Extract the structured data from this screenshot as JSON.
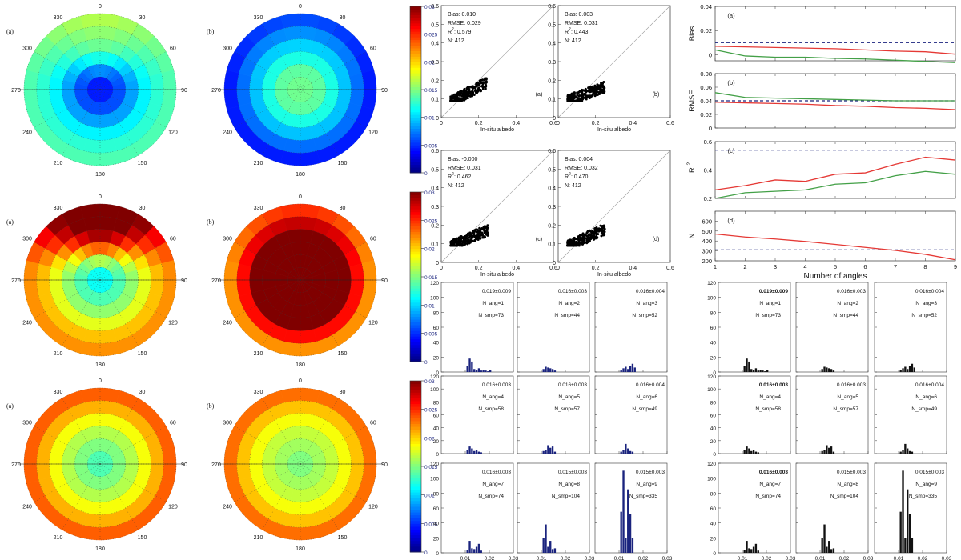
{
  "polar_figure": {
    "panel_letters": [
      "(a)",
      "(b)"
    ],
    "angle_labels": [
      "0",
      "30",
      "60",
      "90",
      "120",
      "150",
      "180",
      "210",
      "240",
      "270",
      "300",
      "330"
    ],
    "colorbar_ticks": [
      "0",
      "0.005",
      "0.01",
      "0.015",
      "0.02",
      "0.025",
      "0.03"
    ],
    "colorbar_range": [
      0,
      0.03
    ],
    "rows": [
      {
        "a": {
          "rings": [
            0.0045,
            0.006,
            0.0085,
            0.011,
            0.0125,
            0.0135
          ],
          "north_boost": [
            0,
            0.002,
            0.0035,
            0.0035,
            0.003,
            0.003
          ]
        },
        "b": {
          "rings": [
            0.0145,
            0.014,
            0.012,
            0.0095,
            0.007,
            0.0045
          ],
          "north_boost": [
            0,
            0,
            0,
            0.0005,
            0.001,
            0.0015
          ]
        }
      },
      {
        "a": {
          "rings": [
            0.0115,
            0.0135,
            0.0155,
            0.018,
            0.0205,
            0.022
          ],
          "north_boost": [
            0,
            0.003,
            0.008,
            0.011,
            0.012,
            0.012
          ]
        },
        "b": {
          "rings": [
            0.03,
            0.03,
            0.03,
            0.03,
            0.026,
            0.022
          ],
          "north_boost": [
            0,
            0,
            0,
            0,
            0.002,
            0.003
          ]
        }
      },
      {
        "a": {
          "rings": [
            0.0135,
            0.015,
            0.0165,
            0.0185,
            0.021,
            0.0235
          ],
          "north_boost": [
            0,
            0,
            0,
            0,
            0,
            0
          ]
        },
        "b": {
          "rings": [
            0.015,
            0.016,
            0.017,
            0.0185,
            0.0205,
            0.023
          ],
          "north_boost": [
            0,
            0,
            0,
            0,
            0,
            0
          ]
        }
      }
    ]
  },
  "chart_data": [
    {
      "type": "scatter",
      "panels": [
        {
          "label": "(a)",
          "bias": "Bias: 0.010",
          "rmse": "RMSE: 0.029",
          "r2": "R",
          "r2_value": ": 0.579",
          "n": "N: 412",
          "slope": 0.9
        },
        {
          "label": "(b)",
          "bias": "Bias: 0.003",
          "rmse": "RMSE: 0.031",
          "r2": "R",
          "r2_value": ": 0.443",
          "n": "N: 412",
          "slope": 0.6
        },
        {
          "label": "(c)",
          "bias": "Bias: -0.000",
          "rmse": "RMSE: 0.031",
          "r2": "R",
          "r2_value": ": 0.462",
          "n": "N: 412",
          "slope": 0.7
        },
        {
          "label": "(d)",
          "bias": "Bias: 0.004",
          "rmse": "RMSE: 0.032",
          "r2": "R",
          "r2_value": ": 0.470",
          "n": "N: 412",
          "slope": 0.75
        }
      ],
      "xlabel": "In-situ albedo",
      "xlim": [
        0,
        0.6
      ],
      "ylim": [
        0,
        0.6
      ],
      "ticks": [
        "0",
        "0.1",
        "0.2",
        "0.3",
        "0.4",
        "0.5",
        "0.6"
      ],
      "xticks": [
        "0",
        "0.2",
        "0.4",
        "0.6"
      ],
      "x_range": [
        0.05,
        0.25
      ]
    },
    {
      "type": "line",
      "x": [
        1,
        2,
        3,
        4,
        5,
        6,
        7,
        8,
        9
      ],
      "xlabel": "Number of angles",
      "xticks": [
        "1",
        "2",
        "3",
        "4",
        "5",
        "6",
        "7",
        "8",
        "9"
      ],
      "panels": [
        {
          "label": "(a)",
          "ylabel": "Bias",
          "ylim": [
            -0.005,
            0.04
          ],
          "yticks": [
            "0",
            "0.02",
            "0.04"
          ],
          "ytick_values": [
            0,
            0.02,
            0.04
          ],
          "red": [
            0.007,
            0.0065,
            0.006,
            0.0055,
            0.005,
            0.004,
            0.003,
            0.0025,
            0.0005
          ],
          "green": [
            0.004,
            -0.001,
            -0.002,
            -0.002,
            -0.003,
            -0.0035,
            -0.0045,
            -0.0055,
            -0.0065
          ],
          "dashed": 0.01
        },
        {
          "label": "(b)",
          "ylabel": "RMSE",
          "ylim": [
            0,
            0.08
          ],
          "yticks": [
            "0",
            "0.02",
            "0.04",
            "0.06",
            "0.08"
          ],
          "ytick_values": [
            0,
            0.02,
            0.04,
            0.06,
            0.08
          ],
          "red": [
            0.038,
            0.037,
            0.036,
            0.035,
            0.033,
            0.032,
            0.03,
            0.029,
            0.027
          ],
          "green": [
            0.052,
            0.045,
            0.044,
            0.043,
            0.042,
            0.041,
            0.04,
            0.04,
            0.04
          ],
          "dashed": 0.04
        },
        {
          "label": "(c)",
          "ylabel": "R",
          "ylim": [
            0.2,
            0.6
          ],
          "yticks": [
            "0.2",
            "0.4",
            "0.6"
          ],
          "ytick_values": [
            0.2,
            0.4,
            0.6
          ],
          "red": [
            0.26,
            0.29,
            0.33,
            0.32,
            0.37,
            0.38,
            0.44,
            0.49,
            0.47
          ],
          "green": [
            0.2,
            0.24,
            0.25,
            0.26,
            0.3,
            0.31,
            0.36,
            0.39,
            0.37
          ],
          "dashed": 0.54
        },
        {
          "label": "(d)",
          "ylabel": "N",
          "ylim": [
            200,
            700
          ],
          "yticks": [
            "200",
            "300",
            "400",
            "500",
            "600"
          ],
          "ytick_values": [
            200,
            300,
            400,
            500,
            600
          ],
          "red": [
            470,
            440,
            420,
            395,
            365,
            335,
            305,
            265,
            210
          ],
          "green": null,
          "dashed": 310
        }
      ]
    },
    {
      "type": "bar",
      "xlabel": "RMSE",
      "xlim": [
        0,
        0.03
      ],
      "ylim": [
        0,
        120
      ],
      "xticks": [
        "0.01",
        "0.02",
        "0.03"
      ],
      "yticks": [
        "0",
        "20",
        "40",
        "60",
        "80",
        "100",
        "120"
      ],
      "groups": [
        {
          "color": "#1a237e",
          "panels": [
            {
              "stat": "0.019±0.009",
              "n_ang": "N_ang=1",
              "n_smp": "N_smp=73",
              "values": [
                8,
                18,
                14,
                4,
                3,
                5,
                2,
                3,
                2,
                1,
                3
              ]
            },
            {
              "stat": "0.016±0.003",
              "n_ang": "N_ang=2",
              "n_smp": "N_smp=44",
              "values": [
                4,
                7,
                6,
                5,
                4,
                2
              ]
            },
            {
              "stat": "0.016±0.004",
              "n_ang": "N_ang=3",
              "n_smp": "N_smp=52",
              "values": [
                3,
                5,
                7,
                4,
                8,
                11,
                6
              ]
            },
            {
              "stat": "0.016±0.003",
              "n_ang": "N_ang=4",
              "n_smp": "N_smp=58",
              "values": [
                5,
                11,
                8,
                4,
                5,
                3,
                2
              ]
            },
            {
              "stat": "0.016±0.003",
              "n_ang": "N_ang=5",
              "n_smp": "N_smp=57",
              "values": [
                4,
                6,
                13,
                9,
                11,
                3
              ]
            },
            {
              "stat": "0.016±0.004",
              "n_ang": "N_ang=6",
              "n_smp": "N_smp=49",
              "values": [
                3,
                5,
                15,
                8,
                4,
                3
              ]
            },
            {
              "stat": "0.016±0.003",
              "n_ang": "N_ang=7",
              "n_smp": "N_smp=74",
              "values": [
                4,
                16,
                6,
                5,
                8,
                12,
                3
              ]
            },
            {
              "stat": "0.015±0.003",
              "n_ang": "N_ang=8",
              "n_smp": "N_smp=104",
              "values": [
                20,
                38,
                8,
                16,
                5,
                6
              ]
            },
            {
              "stat": "0.015±0.003",
              "n_ang": "N_ang=9",
              "n_smp": "N_smp=335",
              "values": [
                55,
                110,
                20,
                85,
                52,
                20
              ]
            }
          ]
        },
        {
          "color": "#111111",
          "panels": [
            {
              "stat": "0.019±0.009",
              "n_ang": "N_ang=1",
              "n_smp": "N_smp=73",
              "values": [
                8,
                18,
                14,
                4,
                3,
                5,
                2,
                3,
                2,
                1,
                3
              ]
            },
            {
              "stat": "0.016±0.003",
              "n_ang": "N_ang=2",
              "n_smp": "N_smp=44",
              "values": [
                4,
                7,
                6,
                5,
                4,
                2
              ]
            },
            {
              "stat": "0.016±0.004",
              "n_ang": "N_ang=3",
              "n_smp": "N_smp=52",
              "values": [
                3,
                5,
                7,
                4,
                8,
                11,
                6
              ]
            },
            {
              "stat": "0.016±0.003",
              "n_ang": "N_ang=4",
              "n_smp": "N_smp=58",
              "values": [
                5,
                11,
                8,
                4,
                5,
                3,
                2
              ]
            },
            {
              "stat": "0.016±0.003",
              "n_ang": "N_ang=5",
              "n_smp": "N_smp=57",
              "values": [
                4,
                6,
                13,
                9,
                11,
                3
              ]
            },
            {
              "stat": "0.016±0.004",
              "n_ang": "N_ang=6",
              "n_smp": "N_smp=49",
              "values": [
                3,
                5,
                15,
                8,
                4,
                3
              ]
            },
            {
              "stat": "0.016±0.003",
              "n_ang": "N_ang=7",
              "n_smp": "N_smp=74",
              "values": [
                4,
                16,
                6,
                5,
                8,
                12,
                3
              ]
            },
            {
              "stat": "0.015±0.003",
              "n_ang": "N_ang=8",
              "n_smp": "N_smp=104",
              "values": [
                20,
                38,
                8,
                16,
                5,
                6
              ]
            },
            {
              "stat": "0.015±0.003",
              "n_ang": "N_ang=9",
              "n_smp": "N_smp=335",
              "values": [
                55,
                110,
                20,
                85,
                52,
                20
              ]
            }
          ]
        }
      ]
    }
  ]
}
